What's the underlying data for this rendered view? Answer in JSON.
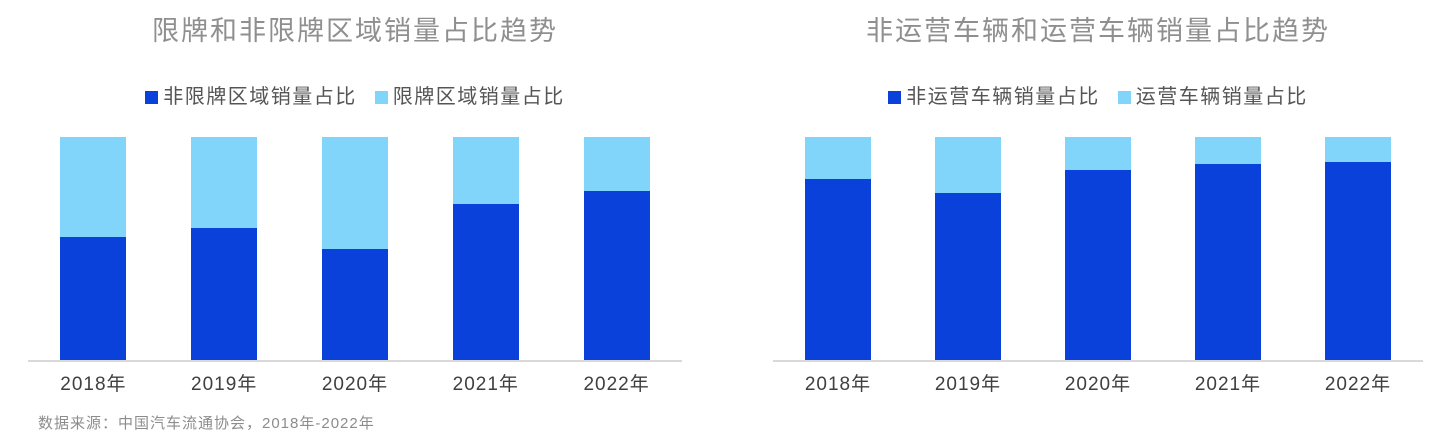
{
  "page": {
    "background": "#ffffff",
    "source_note": "数据来源：中国汽车流通协会，2018年-2022年"
  },
  "colors": {
    "series_dark_blue": "#0B41DB",
    "series_light_blue": "#82D5FA",
    "title_gray": "#8F8F8F",
    "legend_text_gray": "#555555",
    "axis_line_gray": "#D9D9D9",
    "tick_label_dark_gray": "#3F3F3F",
    "source_note_gray": "#8C8C8C"
  },
  "chart_data": [
    {
      "type": "bar",
      "stacked": true,
      "percent_stacked": true,
      "title": "限牌和非限牌区域销量占比趋势",
      "categories": [
        "2018年",
        "2019年",
        "2020年",
        "2021年",
        "2022年"
      ],
      "series": [
        {
          "name": "非限牌区域销量占比",
          "color": "#0B41DB",
          "values": [
            55,
            59,
            50,
            70,
            76
          ]
        },
        {
          "name": "限牌区域销量占比",
          "color": "#82D5FA",
          "values": [
            45,
            41,
            50,
            30,
            24
          ]
        }
      ],
      "unit": "%",
      "ylim": [
        0,
        100
      ],
      "grid": false,
      "y_axis_visible": false,
      "legend_position": "top"
    },
    {
      "type": "bar",
      "stacked": true,
      "percent_stacked": true,
      "title": "非运营车辆和运营车辆销量占比趋势",
      "categories": [
        "2018年",
        "2019年",
        "2020年",
        "2021年",
        "2022年"
      ],
      "series": [
        {
          "name": "非运营车辆销量占比",
          "color": "#0B41DB",
          "values": [
            81,
            75,
            85,
            88,
            89
          ]
        },
        {
          "name": "运营车辆销量占比",
          "color": "#82D5FA",
          "values": [
            19,
            25,
            15,
            12,
            11
          ]
        }
      ],
      "unit": "%",
      "ylim": [
        0,
        100
      ],
      "grid": false,
      "y_axis_visible": false,
      "legend_position": "top"
    }
  ]
}
